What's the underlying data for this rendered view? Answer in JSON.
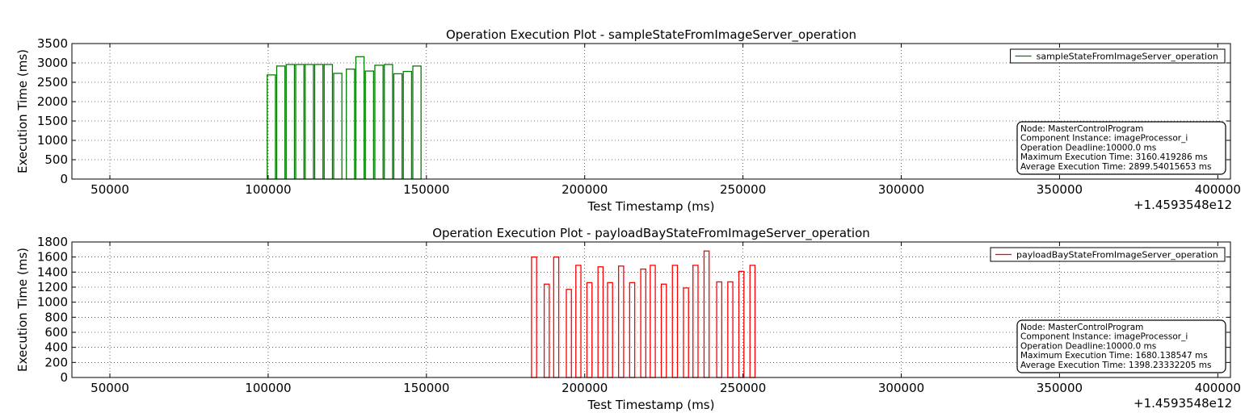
{
  "chart_data": [
    {
      "type": "bar",
      "title": "Operation Execution Plot - sampleStateFromImageServer_operation",
      "xlabel": "Test Timestamp (ms)",
      "ylabel": "Execution Time (ms)",
      "x_offset_label": "+1.4593548e12",
      "xlim": [
        38000,
        404000
      ],
      "ylim": [
        0,
        3500
      ],
      "xticks": [
        50000,
        100000,
        150000,
        200000,
        250000,
        300000,
        350000,
        400000
      ],
      "yticks": [
        0,
        500,
        1000,
        1500,
        2000,
        2500,
        3000,
        3500
      ],
      "grid": true,
      "legend_position": "top-right",
      "color": "#008000",
      "series": [
        {
          "name": "sampleStateFromImageServer_operation",
          "x": [
            101000,
            104000,
            107000,
            110000,
            113000,
            116000,
            119000,
            122000,
            126000,
            129000,
            132000,
            135000,
            138000,
            141000,
            144000,
            147000
          ],
          "values": [
            2690,
            2920,
            2960,
            2960,
            2960,
            2960,
            2960,
            2730,
            2840,
            3160,
            2790,
            2940,
            2960,
            2720,
            2780,
            2920
          ]
        }
      ],
      "bar_width": 2600,
      "info_box": [
        "Node: MasterControlProgram",
        "Component Instance: imageProcessor_i",
        "Operation Deadline:10000.0 ms",
        "Maximum Execution Time: 3160.419286 ms",
        "Average Execution Time: 2899.54015653 ms"
      ]
    },
    {
      "type": "bar",
      "title": "Operation Execution Plot - payloadBayStateFromImageServer_operation",
      "xlabel": "Test Timestamp (ms)",
      "ylabel": "Execution Time (ms)",
      "x_offset_label": "+1.4593548e12",
      "xlim": [
        38000,
        404000
      ],
      "ylim": [
        0,
        1800
      ],
      "xticks": [
        50000,
        100000,
        150000,
        200000,
        250000,
        300000,
        350000,
        400000
      ],
      "yticks": [
        0,
        200,
        400,
        600,
        800,
        1000,
        1200,
        1400,
        1600,
        1800
      ],
      "grid": true,
      "legend_position": "top-right",
      "color": "#ff0000",
      "series": [
        {
          "name": "payloadBayStateFromImageServer_operation",
          "x": [
            184000,
            188000,
            191000,
            195000,
            198000,
            201500,
            205000,
            208000,
            211500,
            215000,
            218500,
            221500,
            225000,
            228500,
            232000,
            235000,
            238500,
            242500,
            246000,
            249500,
            253000
          ],
          "values": [
            1600,
            1240,
            1600,
            1170,
            1490,
            1260,
            1470,
            1260,
            1480,
            1260,
            1440,
            1490,
            1240,
            1490,
            1190,
            1490,
            1680,
            1270,
            1270,
            1410,
            1490
          ]
        }
      ],
      "bar_width": 1600,
      "info_box": [
        "Node: MasterControlProgram",
        "Component Instance: imageProcessor_i",
        "Operation Deadline:10000.0 ms",
        "Maximum Execution Time: 1680.138547 ms",
        "Average Execution Time: 1398.23332205 ms"
      ]
    }
  ]
}
